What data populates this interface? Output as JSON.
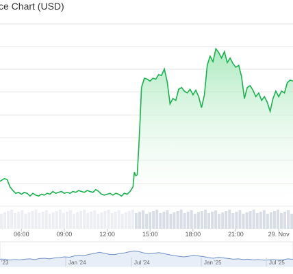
{
  "chart_data": {
    "type": "area",
    "title": "ce Chart (USD)",
    "xlabel": "",
    "ylabel": "",
    "grid": true,
    "x_ticks": [
      "06:00",
      "09:00",
      "12:00",
      "15:00",
      "18:00",
      "21:00",
      "29. Nov"
    ],
    "x_range_hours": [
      4.5,
      25
    ],
    "y_range": [
      0,
      10
    ],
    "series": [
      {
        "x": [
          4.5,
          4.8,
          5.0,
          5.2,
          5.4,
          5.6,
          5.8,
          6.0,
          6.2,
          6.4,
          6.6,
          6.8,
          7.0,
          7.2,
          7.4,
          7.6,
          7.8,
          8.0,
          8.2,
          8.4,
          8.6,
          8.8,
          9.0,
          9.2,
          9.4,
          9.6,
          9.8,
          10.0,
          10.2,
          10.4,
          10.6,
          10.8,
          11.0,
          11.2,
          11.4,
          11.6,
          11.8,
          12.0,
          12.2,
          12.4,
          12.6,
          12.8,
          13.0,
          13.2,
          13.4,
          13.6,
          13.8,
          13.9,
          14.0,
          14.1,
          14.2,
          14.3,
          14.4,
          14.6,
          14.8,
          15.0,
          15.2,
          15.4,
          15.6,
          15.8,
          16.0,
          16.2,
          16.4,
          16.6,
          16.8,
          17.0,
          17.2,
          17.4,
          17.6,
          17.8,
          18.0,
          18.2,
          18.4,
          18.6,
          18.8,
          19.0,
          19.2,
          19.4,
          19.6,
          19.8,
          20.0,
          20.2,
          20.4,
          20.6,
          20.8,
          21.0,
          21.2,
          21.4,
          21.6,
          21.8,
          22.0,
          22.2,
          22.4,
          22.6,
          22.8,
          23.0,
          23.2,
          23.4,
          23.6,
          23.8,
          24.0,
          24.2,
          24.4,
          24.6,
          24.8,
          25.0
        ],
        "values": [
          1.5,
          1.65,
          1.6,
          1.2,
          1.0,
          0.85,
          0.9,
          0.8,
          0.9,
          0.85,
          0.7,
          0.85,
          0.75,
          0.7,
          0.8,
          0.75,
          0.85,
          0.8,
          0.95,
          0.85,
          0.9,
          0.95,
          0.85,
          0.9,
          0.85,
          0.95,
          0.9,
          1.0,
          0.95,
          0.9,
          1.0,
          0.95,
          0.9,
          1.05,
          0.95,
          0.8,
          0.75,
          0.8,
          0.85,
          0.75,
          0.85,
          0.8,
          0.7,
          0.85,
          0.8,
          0.95,
          1.2,
          2.0,
          1.8,
          1.85,
          3.2,
          4.8,
          6.6,
          7.1,
          7.05,
          6.95,
          7.1,
          7.05,
          7.3,
          7.25,
          7.6,
          6.9,
          5.7,
          6.0,
          5.9,
          6.5,
          6.6,
          6.4,
          6.3,
          6.5,
          6.2,
          6.45,
          6.1,
          5.5,
          6.2,
          7.8,
          8.3,
          8.0,
          8.7,
          8.5,
          8.2,
          8.55,
          7.95,
          8.2,
          7.9,
          7.7,
          7.8,
          7.2,
          6.0,
          6.6,
          6.7,
          6.45,
          6.1,
          6.3,
          5.9,
          6.1,
          5.8,
          5.3,
          6.0,
          6.4,
          6.1,
          6.4,
          6.3,
          6.85,
          7.0,
          6.95
        ]
      }
    ],
    "navigator": {
      "x_ticks": [
        "'23",
        "Jan '24",
        "Jul '24",
        "Jan '25",
        "Jul '25"
      ]
    }
  },
  "colors": {
    "line": "#16b24b",
    "fill_top": "#9fe6b3",
    "grid": "#e6e6e6",
    "nav_line": "#6b8fc7",
    "nav_fill": "#e8eef8"
  }
}
